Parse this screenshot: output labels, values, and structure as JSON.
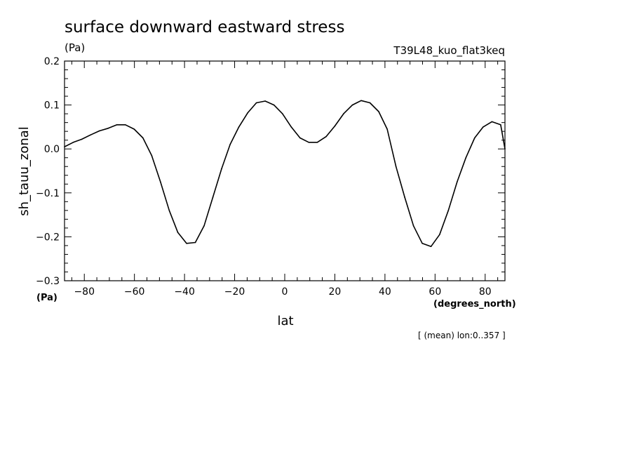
{
  "chart_data": {
    "type": "line",
    "title": "surface downward eastward stress",
    "title_units": "(Pa)",
    "experiment": "T39L48_kuo_flat3keq",
    "xlabel": "lat",
    "xunits": "(degrees_north)",
    "ylabel": "sh_tauu_zonal",
    "yunits": "(Pa)",
    "footnote": "[ (mean) lon:0..357 ]",
    "xlim": [
      -87.9,
      87.9
    ],
    "ylim": [
      -0.3,
      0.2
    ],
    "grid": false,
    "x_ticks": [
      -80,
      -60,
      -40,
      -20,
      0,
      20,
      40,
      60,
      80
    ],
    "x_tick_labels": [
      "−80",
      "−60",
      "−40",
      "−20",
      "0",
      "20",
      "40",
      "60",
      "80"
    ],
    "y_ticks": [
      -0.3,
      -0.2,
      -0.1,
      0.0,
      0.1,
      0.2
    ],
    "y_tick_labels": [
      "−0.3",
      "−0.2",
      "−0.1",
      "0.0",
      "0.1",
      "0.2"
    ],
    "series": [
      {
        "color": "#000000",
        "x": [
          -87.9,
          -84.4,
          -81.0,
          -77.5,
          -74.0,
          -70.5,
          -67.0,
          -63.6,
          -60.1,
          -56.6,
          -53.1,
          -49.6,
          -46.1,
          -42.7,
          -39.2,
          -35.7,
          -32.2,
          -28.7,
          -25.2,
          -21.8,
          -18.3,
          -14.8,
          -11.3,
          -7.8,
          -4.3,
          -0.9,
          2.6,
          6.1,
          9.6,
          13.0,
          16.5,
          20.0,
          23.5,
          27.0,
          30.5,
          34.0,
          37.5,
          40.9,
          44.4,
          47.9,
          51.4,
          54.9,
          58.4,
          61.8,
          65.3,
          68.8,
          72.3,
          75.8,
          79.2,
          82.7,
          86.2,
          87.9
        ],
        "y": [
          0.005,
          0.015,
          0.022,
          0.032,
          0.041,
          0.047,
          0.055,
          0.055,
          0.045,
          0.025,
          -0.015,
          -0.075,
          -0.14,
          -0.19,
          -0.215,
          -0.213,
          -0.175,
          -0.11,
          -0.045,
          0.01,
          0.05,
          0.082,
          0.105,
          0.109,
          0.1,
          0.08,
          0.05,
          0.025,
          0.015,
          0.015,
          0.028,
          0.052,
          0.08,
          0.1,
          0.11,
          0.105,
          0.085,
          0.045,
          -0.04,
          -0.11,
          -0.175,
          -0.215,
          -0.222,
          -0.195,
          -0.14,
          -0.075,
          -0.02,
          0.025,
          0.05,
          0.062,
          0.055,
          0.0
        ]
      }
    ]
  }
}
